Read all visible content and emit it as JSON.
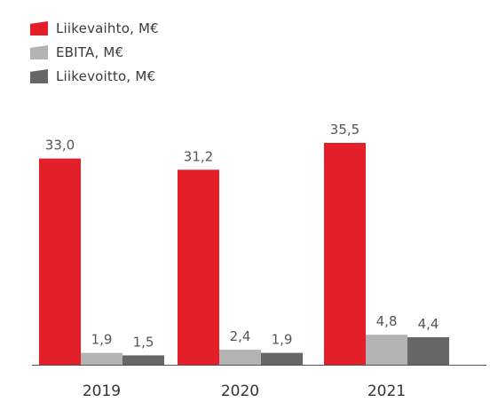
{
  "chart_data": {
    "type": "bar",
    "categories": [
      "2019",
      "2020",
      "2021"
    ],
    "series": [
      {
        "name": "Liikevaihto, M€",
        "values": [
          33.0,
          31.2,
          35.5
        ],
        "labels": [
          "33,0",
          "31,2",
          "35,5"
        ],
        "color": "#e3202a"
      },
      {
        "name": "EBITA, M€",
        "values": [
          1.9,
          2.4,
          4.8
        ],
        "labels": [
          "1,9",
          "2,4",
          "4,8"
        ],
        "color": "#b3b3b3"
      },
      {
        "name": "Liikevoitto, M€",
        "values": [
          1.5,
          1.9,
          4.4
        ],
        "labels": [
          "1,5",
          "1,9",
          "4,4"
        ],
        "color": "#666666"
      }
    ],
    "ylim": [
      0,
      35.5
    ],
    "grid": false,
    "legend": "top-left",
    "title": "",
    "xlabel": "",
    "ylabel": ""
  }
}
